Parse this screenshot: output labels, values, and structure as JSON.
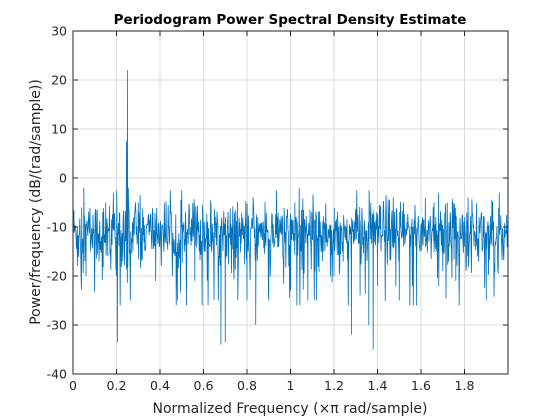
{
  "chart_data": {
    "type": "line",
    "title": "Periodogram Power Spectral Density Estimate",
    "xlabel": "Normalized Frequency  (×π rad/sample)",
    "ylabel": "Power/frequency (dB/(rad/sample))",
    "xlim": [
      0,
      2
    ],
    "ylim": [
      -40,
      30
    ],
    "xticks": [
      "0",
      "0.2",
      "0.4",
      "0.6",
      "0.8",
      "1",
      "1.2",
      "1.4",
      "1.6",
      "1.8"
    ],
    "yticks": [
      "-40",
      "-30",
      "-20",
      "-10",
      "0",
      "10",
      "20",
      "30"
    ],
    "grid": true,
    "series": [
      {
        "color": "#0072bd",
        "description": "noise floor around -11 dB (spread roughly -20 to -3 dB, dips to about -35 dB) with a sharp peak at x=0.25",
        "points": [
          [
            0.0,
            -8
          ],
          [
            0.02,
            -18
          ],
          [
            0.04,
            -6
          ],
          [
            0.05,
            -2
          ],
          [
            0.06,
            -20
          ],
          [
            0.08,
            -15
          ],
          [
            0.12,
            -17
          ],
          [
            0.16,
            -16
          ],
          [
            0.18,
            -9
          ],
          [
            0.2,
            -20
          ],
          [
            0.204,
            -33.5
          ],
          [
            0.24,
            -10
          ],
          [
            0.246,
            7.5
          ],
          [
            0.25,
            22
          ],
          [
            0.254,
            -2
          ],
          [
            0.3,
            -5
          ],
          [
            0.38,
            -21
          ],
          [
            0.48,
            -25
          ],
          [
            0.56,
            -21
          ],
          [
            0.68,
            -34
          ],
          [
            0.7,
            -33.5
          ],
          [
            0.76,
            -17
          ],
          [
            0.8,
            -25
          ],
          [
            0.84,
            -30
          ],
          [
            0.9,
            -25
          ],
          [
            1.0,
            -23
          ],
          [
            1.02,
            -5
          ],
          [
            1.04,
            -2
          ],
          [
            1.08,
            -25
          ],
          [
            1.12,
            -25
          ],
          [
            1.2,
            -20
          ],
          [
            1.28,
            -32
          ],
          [
            1.32,
            -24
          ],
          [
            1.36,
            -30
          ],
          [
            1.38,
            -35
          ],
          [
            1.4,
            -22
          ],
          [
            1.46,
            -16
          ],
          [
            1.5,
            -25
          ],
          [
            1.52,
            -14
          ],
          [
            1.56,
            -22
          ],
          [
            1.58,
            -26
          ],
          [
            1.62,
            -4
          ],
          [
            1.66,
            -5
          ],
          [
            1.68,
            -3
          ],
          [
            1.7,
            -19
          ],
          [
            1.76,
            -21
          ],
          [
            1.8,
            -14
          ],
          [
            1.86,
            -16
          ],
          [
            1.9,
            -25
          ],
          [
            1.94,
            -14
          ],
          [
            1.96,
            -3
          ],
          [
            2.0,
            -7
          ]
        ]
      }
    ]
  }
}
